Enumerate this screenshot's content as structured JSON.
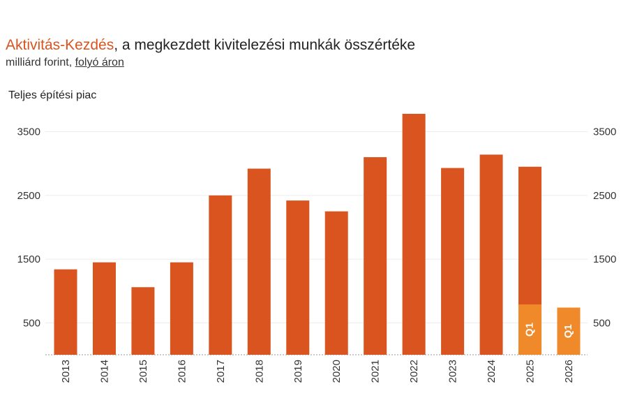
{
  "header": {
    "title_accent": "Aktivitás-Kezdés",
    "title_rest": ", a megkezdett kivitelezési munkák összértéke",
    "subtitle_plain": "milliárd forint, ",
    "subtitle_underlined": "folyó áron"
  },
  "panel_label": "Teljes építési piac",
  "chart_data": {
    "type": "bar",
    "title": "Aktivitás-Kezdés, a megkezdett kivitelezési munkák összértéke",
    "subtitle": "milliárd forint, folyó áron",
    "panel": "Teljes építési piac",
    "categories": [
      "2013",
      "2014",
      "2015",
      "2016",
      "2017",
      "2018",
      "2019",
      "2020",
      "2021",
      "2022",
      "2023",
      "2024",
      "2025",
      "2026"
    ],
    "series": [
      {
        "values": [
          1340,
          1450,
          1060,
          1450,
          2500,
          2920,
          2420,
          2250,
          3100,
          3780,
          2930,
          3140,
          2950,
          null
        ],
        "color": "#d9541e"
      },
      {
        "values": [
          null,
          null,
          null,
          null,
          null,
          null,
          null,
          null,
          null,
          null,
          null,
          null,
          790,
          740
        ],
        "color": "#f0892a",
        "bar_label": "Q1"
      }
    ],
    "yticks": [
      500,
      1500,
      2500,
      3500
    ],
    "ylim": [
      0,
      3900
    ],
    "y_axis_both_sides": true,
    "grid": true
  }
}
